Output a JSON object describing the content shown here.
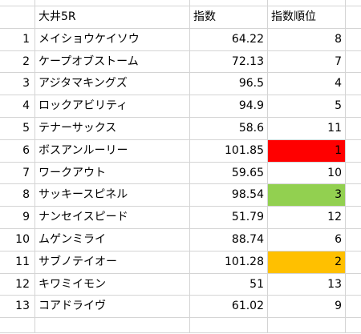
{
  "header": {
    "race": "大井5R",
    "index": "指数",
    "rank": "指数順位"
  },
  "rows": [
    {
      "num": "1",
      "name": "メイショウケイソウ",
      "index": "64.22",
      "rank": "8"
    },
    {
      "num": "2",
      "name": "ケープオブストーム",
      "index": "72.13",
      "rank": "7"
    },
    {
      "num": "3",
      "name": "アジタマキングズ",
      "index": "96.5",
      "rank": "4"
    },
    {
      "num": "4",
      "name": "ロックアビリティ",
      "index": "94.9",
      "rank": "5"
    },
    {
      "num": "5",
      "name": "テナーサックス",
      "index": "58.6",
      "rank": "11"
    },
    {
      "num": "6",
      "name": "ボスアンルーリー",
      "index": "101.85",
      "rank": "1",
      "highlight": "#ff0000"
    },
    {
      "num": "7",
      "name": "ワークアウト",
      "index": "59.65",
      "rank": "10"
    },
    {
      "num": "8",
      "name": "サッキースピネル",
      "index": "98.54",
      "rank": "3",
      "highlight": "#92d050"
    },
    {
      "num": "9",
      "name": "ナンセイスピード",
      "index": "51.79",
      "rank": "12"
    },
    {
      "num": "10",
      "name": "ムゲンミライ",
      "index": "88.74",
      "rank": "6"
    },
    {
      "num": "11",
      "name": "サブノテイオー",
      "index": "101.28",
      "rank": "2",
      "highlight": "#ffc000"
    },
    {
      "num": "12",
      "name": "キワミイモン",
      "index": "51",
      "rank": "13"
    },
    {
      "num": "13",
      "name": "コアドライヴ",
      "index": "61.02",
      "rank": "9"
    }
  ]
}
